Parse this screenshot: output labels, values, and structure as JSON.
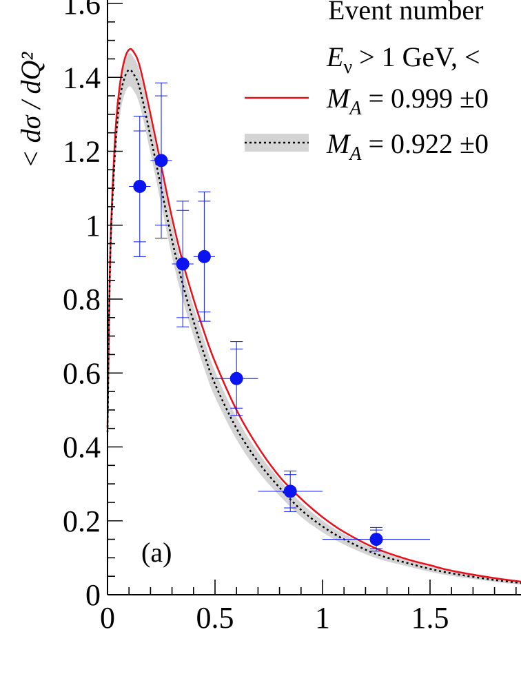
{
  "chart_data": {
    "type": "scatter",
    "xlim": [
      0,
      2
    ],
    "ylim": [
      0,
      1.6
    ],
    "x_ticks": [
      "0",
      "0.5",
      "1",
      "1.5"
    ],
    "y_ticks": [
      "0",
      "0.2",
      "0.4",
      "0.6",
      "0.8",
      "1",
      "1.2",
      "1.4",
      "1.6"
    ],
    "ylabel": "< dσ / dQ²",
    "panel_label": "(a)",
    "legend_header": [
      "Event number",
      "E_ν > 1 GeV, <"
    ],
    "legend_header_line2": {
      "prefix": "E",
      "sub": "ν",
      "rest": " > 1 GeV, <"
    },
    "grid": false,
    "series": [
      {
        "kind": "curve",
        "style": "solid",
        "color": "#e8101a",
        "label": "M_A = 0.999 ±0",
        "label_parts": {
          "var": "M",
          "sub": "A",
          "rest": " = 0.999 ±0"
        },
        "x": [
          0,
          0.01,
          0.02,
          0.04,
          0.06,
          0.08,
          0.1,
          0.12,
          0.15,
          0.2,
          0.25,
          0.3,
          0.35,
          0.4,
          0.45,
          0.5,
          0.6,
          0.7,
          0.8,
          0.9,
          1.0,
          1.1,
          1.25,
          1.4,
          1.5,
          1.6,
          1.8,
          2.0
        ],
        "y": [
          0.45,
          0.85,
          1.05,
          1.28,
          1.39,
          1.45,
          1.475,
          1.47,
          1.43,
          1.3,
          1.16,
          1.02,
          0.9,
          0.8,
          0.71,
          0.63,
          0.5,
          0.4,
          0.32,
          0.26,
          0.21,
          0.17,
          0.125,
          0.095,
          0.08,
          0.065,
          0.045,
          0.03
        ]
      },
      {
        "kind": "curve_band",
        "style": "dotted",
        "color": "#000000",
        "band_color": "#d4d4d4",
        "label": "M_A = 0.922 ±0",
        "label_parts": {
          "var": "M",
          "sub": "A",
          "rest": " = 0.922 ±0"
        },
        "x": [
          0,
          0.01,
          0.02,
          0.04,
          0.06,
          0.08,
          0.1,
          0.12,
          0.15,
          0.2,
          0.25,
          0.3,
          0.35,
          0.4,
          0.45,
          0.5,
          0.6,
          0.7,
          0.8,
          0.9,
          1.0,
          1.1,
          1.25,
          1.4,
          1.5,
          1.6,
          1.8,
          2.0
        ],
        "y": [
          0.44,
          0.84,
          1.03,
          1.24,
          1.35,
          1.4,
          1.42,
          1.41,
          1.37,
          1.24,
          1.1,
          0.96,
          0.84,
          0.74,
          0.65,
          0.57,
          0.45,
          0.36,
          0.29,
          0.23,
          0.185,
          0.15,
          0.11,
          0.085,
          0.07,
          0.058,
          0.04,
          0.027
        ],
        "band_half_width": [
          0.02,
          0.03,
          0.035,
          0.04,
          0.045,
          0.045,
          0.045,
          0.045,
          0.045,
          0.045,
          0.045,
          0.045,
          0.042,
          0.04,
          0.038,
          0.035,
          0.03,
          0.026,
          0.022,
          0.019,
          0.016,
          0.014,
          0.011,
          0.009,
          0.008,
          0.007,
          0.005,
          0.004
        ]
      },
      {
        "kind": "data_points",
        "color": "#0a14f0",
        "points": [
          {
            "x": 0.15,
            "y": 1.105,
            "xerr": 0.05,
            "err_inner": 0.15,
            "err_outer": 0.19
          },
          {
            "x": 0.25,
            "y": 1.175,
            "xerr": 0.05,
            "err_inner": 0.175,
            "err_outer": 0.21
          },
          {
            "x": 0.35,
            "y": 0.895,
            "xerr": 0.05,
            "err_inner": 0.145,
            "err_outer": 0.17
          },
          {
            "x": 0.45,
            "y": 0.915,
            "xerr": 0.05,
            "err_inner": 0.15,
            "err_outer": 0.175
          },
          {
            "x": 0.6,
            "y": 0.585,
            "xerr": 0.1,
            "err_inner": 0.08,
            "err_outer": 0.1
          },
          {
            "x": 0.85,
            "y": 0.28,
            "xerr": 0.15,
            "err_inner": 0.045,
            "err_outer": 0.055
          },
          {
            "x": 1.25,
            "y": 0.15,
            "xerr": 0.25,
            "err_inner": 0.025,
            "err_outer": 0.032
          }
        ]
      }
    ]
  }
}
